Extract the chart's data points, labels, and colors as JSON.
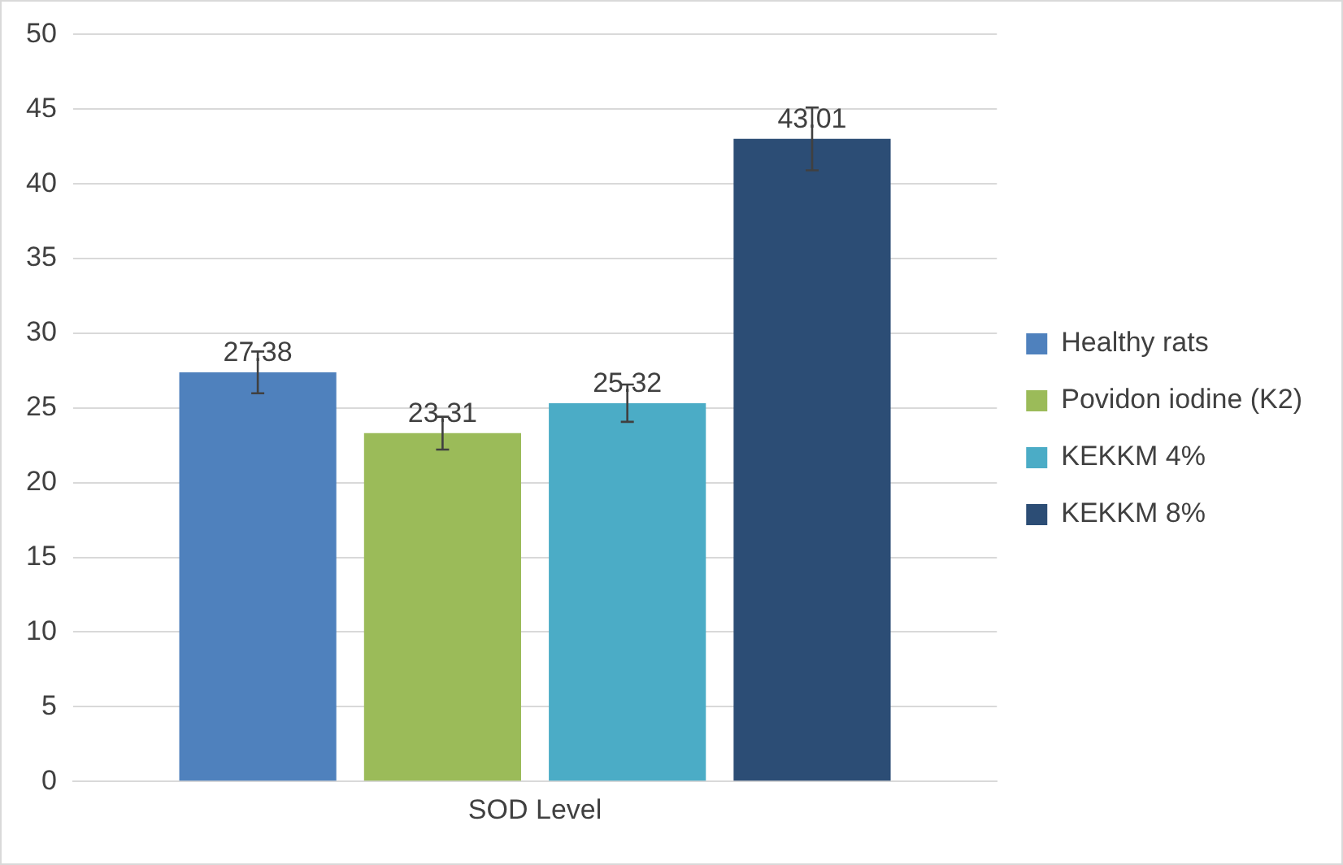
{
  "chart_data": {
    "type": "bar",
    "categories": [
      "SOD Level"
    ],
    "series": [
      {
        "name": "Healthy rats",
        "color": "#4f81bd",
        "values": [
          27.38
        ],
        "errors": [
          1.4
        ]
      },
      {
        "name": "Povidon iodine (K2)",
        "color": "#9bbb59",
        "values": [
          23.31
        ],
        "errors": [
          1.1
        ]
      },
      {
        "name": "KEKKM 4%",
        "color": "#4bacc6",
        "values": [
          25.32
        ],
        "errors": [
          1.25
        ]
      },
      {
        "name": "KEKKM 8%",
        "color": "#2c4d75",
        "values": [
          43.01
        ],
        "errors": [
          2.1
        ]
      }
    ],
    "ylim": [
      0,
      50
    ],
    "yticks": [
      0,
      5,
      10,
      15,
      20,
      25,
      30,
      35,
      40,
      45,
      50
    ],
    "grid": "y",
    "legend": "right",
    "data_labels": true
  }
}
